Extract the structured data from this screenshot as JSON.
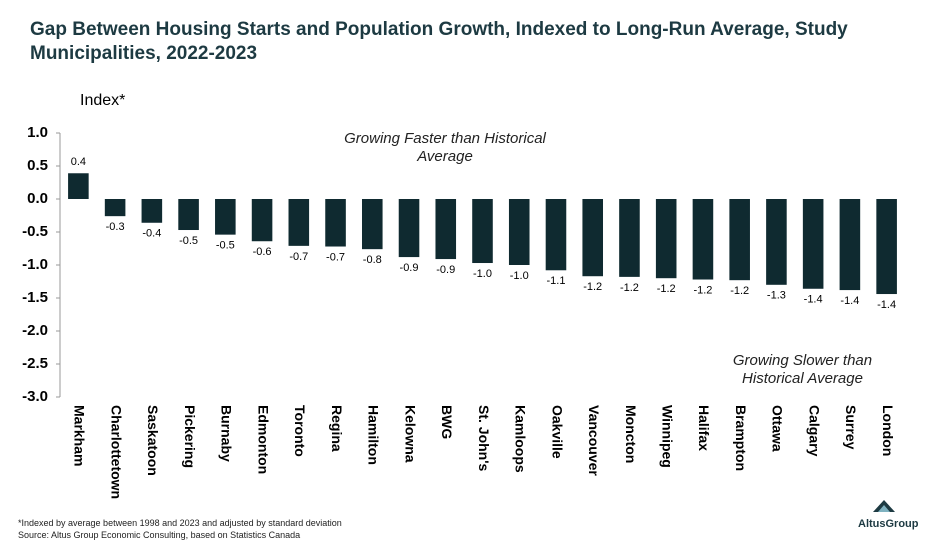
{
  "chart_data": {
    "type": "bar",
    "title": "Gap Between Housing Starts and Population Growth, Indexed to Long-Run Average, Study Municipalities, 2022-2023",
    "y_label": "Index*",
    "categories": [
      "Markham",
      "Charlottetown",
      "Saskatoon",
      "Pickering",
      "Burnaby",
      "Edmonton",
      "Toronto",
      "Regina",
      "Hamilton",
      "Kelowna",
      "BWG",
      "St. John's",
      "Kamloops",
      "Oakville",
      "Vancouver",
      "Moncton",
      "Winnipeg",
      "Halifax",
      "Brampton",
      "Ottawa",
      "Calgary",
      "Surrey",
      "London"
    ],
    "values": [
      0.39,
      -0.26,
      -0.36,
      -0.47,
      -0.54,
      -0.64,
      -0.71,
      -0.72,
      -0.76,
      -0.88,
      -0.91,
      -0.97,
      -1.0,
      -1.08,
      -1.17,
      -1.18,
      -1.2,
      -1.22,
      -1.23,
      -1.3,
      -1.36,
      -1.38,
      -1.44
    ],
    "value_labels": [
      "0.4",
      "-0.3",
      "-0.4",
      "-0.5",
      "-0.5",
      "-0.6",
      "-0.7",
      "-0.7",
      "-0.8",
      "-0.9",
      "-0.9",
      "-1.0",
      "-1.0",
      "-1.1",
      "-1.2",
      "-1.2",
      "-1.2",
      "-1.2",
      "-1.2",
      "-1.3",
      "-1.4",
      "-1.4",
      "-1.4"
    ],
    "color": "#0f2a30",
    "ylim": [
      -3.0,
      1.0
    ],
    "yticks": [
      {
        "value": 1.0,
        "label": "1.0"
      },
      0.5,
      {
        "value": 0.0,
        "label": "0.0"
      },
      -0.5,
      {
        "value": -1.0,
        "label": "-1.0"
      },
      -1.5,
      {
        "value": -2.0,
        "label": "-2.0"
      },
      -2.5,
      {
        "value": -3.0,
        "label": "-3.0"
      }
    ],
    "annotations": [
      "Growing Faster than Historical Average",
      "Growing Slower than Historical Average"
    ],
    "footnotes": [
      "*Indexed by average between 1998 and 2023 and adjusted by standard deviation",
      "Source:  Altus Group Economic Consulting, based on Statistics Canada"
    ],
    "logo": "AltusGroup"
  }
}
